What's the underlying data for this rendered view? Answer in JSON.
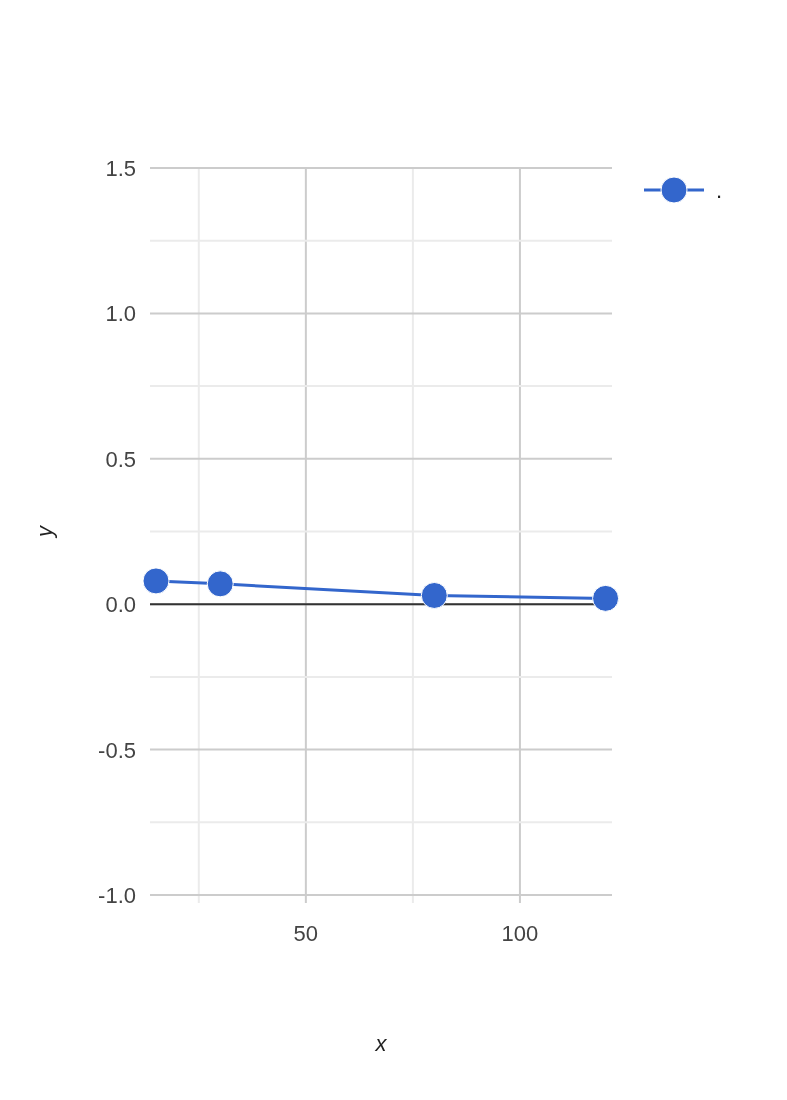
{
  "chart_data": {
    "type": "line",
    "xlabel": "x",
    "ylabel": "y",
    "x": [
      15,
      30,
      80,
      120
    ],
    "series": [
      {
        "name": ".",
        "color": "#3366cc",
        "values": [
          0.08,
          0.07,
          0.03,
          0.02
        ]
      }
    ],
    "xlim": [
      13.6,
      121.5
    ],
    "xticks": [
      {
        "value": 25,
        "label": null
      },
      50,
      {
        "value": 75,
        "label": null
      },
      100
    ],
    "ylim": [
      -1,
      1.5
    ],
    "yticks": [
      {
        "value": -1,
        "label": "-1.0"
      },
      {
        "value": -0.75,
        "label": null
      },
      {
        "value": -0.5,
        "label": "-0.5"
      },
      {
        "value": -0.25,
        "label": null
      },
      {
        "value": 0,
        "label": "0.0"
      },
      {
        "value": 0.25,
        "label": null
      },
      {
        "value": 0.5,
        "label": "0.5"
      },
      {
        "value": 0.75,
        "label": null
      },
      {
        "value": 1,
        "label": "1.0"
      },
      {
        "value": 1.25,
        "label": null
      },
      {
        "value": 1.5,
        "label": "1.5"
      }
    ],
    "grid": true,
    "legend": "top right",
    "marker": "circle",
    "line_style": "solid"
  }
}
